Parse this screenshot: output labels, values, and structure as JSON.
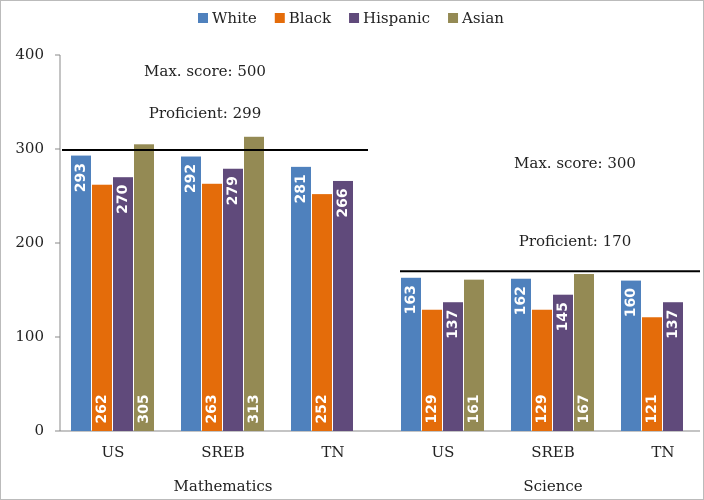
{
  "chart_data": {
    "type": "bar",
    "groups": [
      {
        "name": "Mathematics",
        "categories": [
          "US",
          "SREB",
          "TN"
        ],
        "max_label": "Max. score: 500",
        "proficient": {
          "value": 299,
          "label": "Proficient: 299"
        }
      },
      {
        "name": "Science",
        "categories": [
          "US",
          "SREB",
          "TN"
        ],
        "max_label": "Max. score: 300",
        "proficient": {
          "value": 170,
          "label": "Proficient: 170"
        }
      }
    ],
    "series": [
      {
        "name": "White",
        "color": "#4f81bd",
        "values": [
          293,
          292,
          281,
          163,
          162,
          160
        ]
      },
      {
        "name": "Black",
        "color": "#e46c0a",
        "values": [
          262,
          263,
          252,
          129,
          129,
          121
        ]
      },
      {
        "name": "Hispanic",
        "color": "#604a7b",
        "values": [
          270,
          279,
          266,
          137,
          145,
          137
        ]
      },
      {
        "name": "Asian",
        "color": "#948a54",
        "values": [
          305,
          313,
          null,
          161,
          167,
          null
        ]
      }
    ],
    "ylim": [
      0,
      400
    ],
    "yticks": [
      0,
      100,
      200,
      300,
      400
    ],
    "legend": "top"
  }
}
